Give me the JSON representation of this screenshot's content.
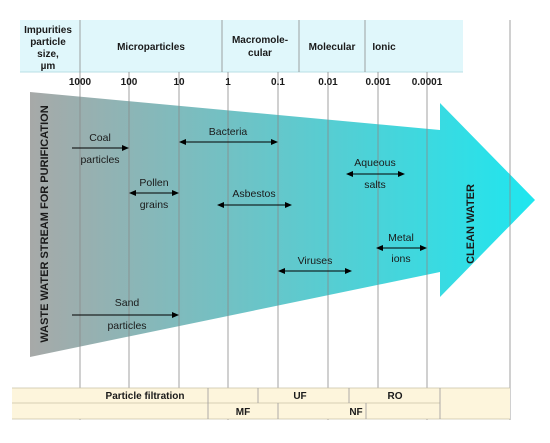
{
  "colors": {
    "header_band": "#e0f7fb",
    "table_band": "#fdf5dc",
    "arrow_start": "#a7a9a8",
    "arrow_end": "#1fe6ef"
  },
  "header": {
    "impurities_label": [
      "Impurities",
      "particle",
      "size,",
      "µm"
    ],
    "categories": [
      "Microparticles",
      "Macromole-",
      "cular",
      "Molecular",
      "Ionic"
    ]
  },
  "scale_ticks": [
    "1000",
    "100",
    "10",
    "1",
    "0.1",
    "0.01",
    "0.001",
    "0.0001"
  ],
  "arrow": {
    "left_label": "WASTE WATER STREAM FOR PURIFICATION",
    "right_label": "CLEAN WATER"
  },
  "impurities": [
    {
      "line1": "Coal",
      "line2": "particles"
    },
    {
      "line1": "Bacteria",
      "line2": ""
    },
    {
      "line1": "Pollen",
      "line2": "grains"
    },
    {
      "line1": "Aqueous",
      "line2": "salts"
    },
    {
      "line1": "Asbestos",
      "line2": ""
    },
    {
      "line1": "Metal",
      "line2": "ions"
    },
    {
      "line1": "Viruses",
      "line2": ""
    },
    {
      "line1": "Sand",
      "line2": "particles"
    }
  ],
  "processes": {
    "particle_filtration": "Particle filtration",
    "uf": "UF",
    "ro": "RO",
    "mf": "MF",
    "nf": "NF"
  }
}
